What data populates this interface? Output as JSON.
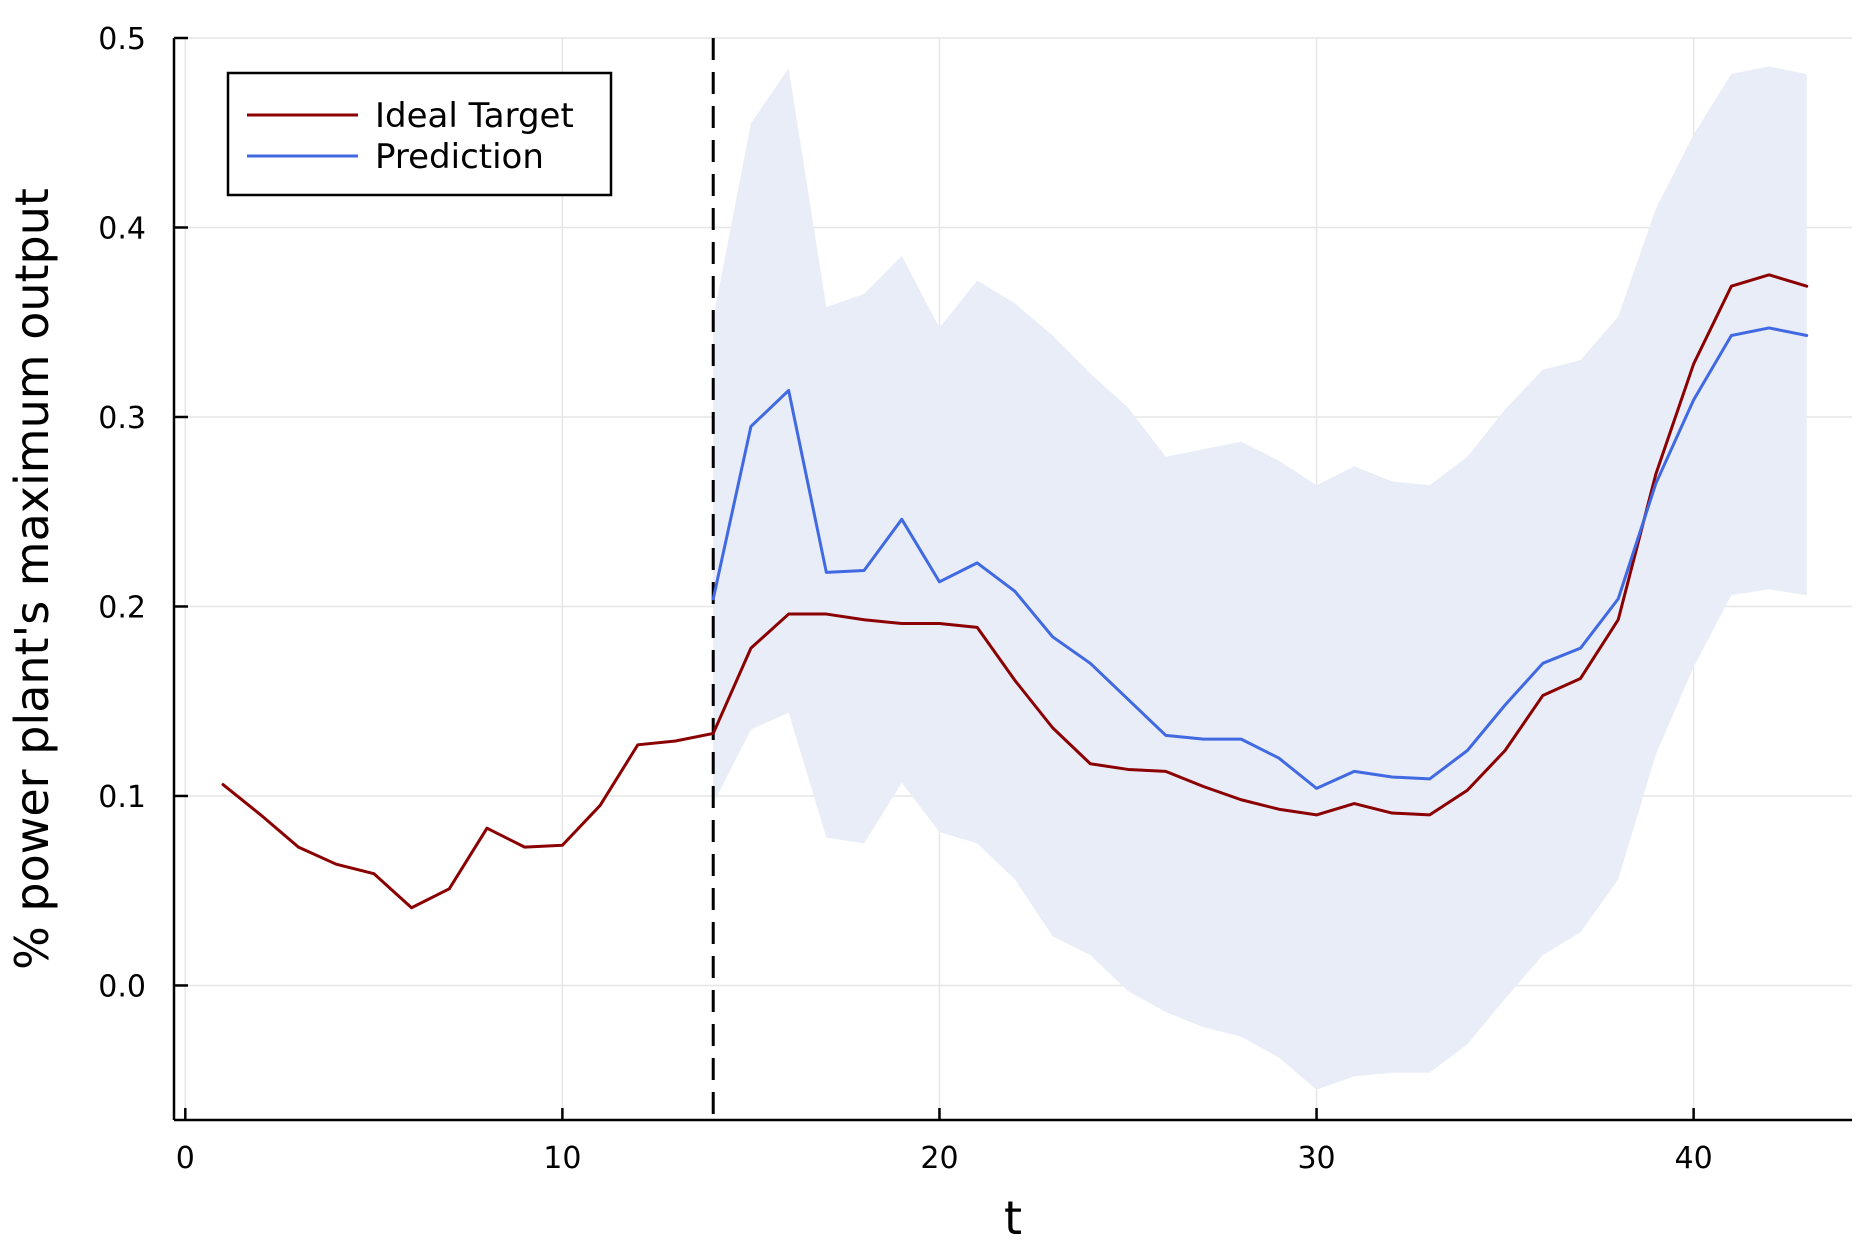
{
  "chart_data": {
    "type": "line",
    "xlabel": "t",
    "ylabel": "% power plant's maximum output",
    "xlim": [
      -0.3,
      44.2
    ],
    "ylim": [
      -0.071,
      0.5
    ],
    "x_ticks": [
      0,
      10,
      20,
      30,
      40
    ],
    "x_tick_labels": [
      "0",
      "10",
      "20",
      "30",
      "40"
    ],
    "y_ticks": [
      0.0,
      0.1,
      0.2,
      0.3,
      0.4,
      0.5
    ],
    "y_tick_labels": [
      "0.0",
      "0.1",
      "0.2",
      "0.3",
      "0.4",
      "0.5"
    ],
    "grid": true,
    "legend_position": "top-left",
    "vertical_line": {
      "x": 14,
      "style": "dashed",
      "color": "#000000"
    },
    "series": [
      {
        "name": "Ideal Target",
        "color": "#8b0000",
        "x": [
          1,
          2,
          3,
          4,
          5,
          6,
          7,
          8,
          9,
          10,
          11,
          12,
          13,
          14,
          15,
          16,
          17,
          18,
          19,
          20,
          21,
          22,
          23,
          24,
          25,
          26,
          27,
          28,
          29,
          30,
          31,
          32,
          33,
          34,
          35,
          36,
          37,
          38,
          39,
          40,
          41,
          42,
          43
        ],
        "y": [
          0.106,
          0.09,
          0.073,
          0.064,
          0.059,
          0.041,
          0.051,
          0.083,
          0.073,
          0.074,
          0.095,
          0.127,
          0.129,
          0.133,
          0.178,
          0.196,
          0.196,
          0.193,
          0.191,
          0.191,
          0.189,
          0.161,
          0.136,
          0.117,
          0.114,
          0.113,
          0.105,
          0.098,
          0.093,
          0.09,
          0.096,
          0.091,
          0.09,
          0.103,
          0.124,
          0.153,
          0.162,
          0.193,
          0.27,
          0.328,
          0.369,
          0.375,
          0.369
        ]
      },
      {
        "name": "Prediction",
        "color": "#4169e1",
        "band_color": "#e8edf8",
        "x": [
          14,
          15,
          16,
          17,
          18,
          19,
          20,
          21,
          22,
          23,
          24,
          25,
          26,
          27,
          28,
          29,
          30,
          31,
          32,
          33,
          34,
          35,
          36,
          37,
          38,
          39,
          40,
          41,
          42,
          43
        ],
        "y": [
          0.204,
          0.295,
          0.314,
          0.218,
          0.219,
          0.246,
          0.213,
          0.223,
          0.208,
          0.184,
          0.17,
          0.151,
          0.132,
          0.13,
          0.13,
          0.12,
          0.104,
          0.113,
          0.11,
          0.109,
          0.124,
          0.148,
          0.17,
          0.178,
          0.204,
          0.265,
          0.309,
          0.343,
          0.347,
          0.343
        ],
        "lower": [
          0.096,
          0.135,
          0.144,
          0.078,
          0.075,
          0.107,
          0.081,
          0.075,
          0.056,
          0.026,
          0.016,
          -0.003,
          -0.014,
          -0.022,
          -0.027,
          -0.038,
          -0.055,
          -0.048,
          -0.046,
          -0.046,
          -0.031,
          -0.007,
          0.016,
          0.028,
          0.056,
          0.122,
          0.168,
          0.206,
          0.209,
          0.206
        ],
        "upper": [
          0.352,
          0.455,
          0.484,
          0.358,
          0.365,
          0.385,
          0.347,
          0.372,
          0.36,
          0.343,
          0.323,
          0.305,
          0.279,
          0.283,
          0.287,
          0.277,
          0.264,
          0.274,
          0.266,
          0.264,
          0.279,
          0.304,
          0.325,
          0.33,
          0.353,
          0.41,
          0.449,
          0.481,
          0.485,
          0.481
        ]
      }
    ]
  }
}
